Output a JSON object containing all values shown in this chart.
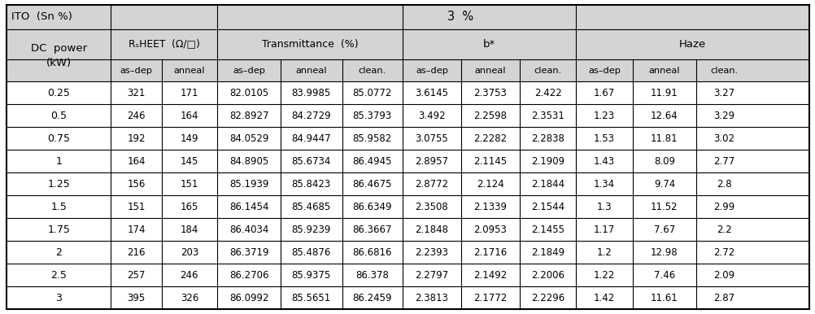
{
  "rows": [
    [
      "0.25",
      "321",
      "171",
      "82.0105",
      "83.9985",
      "85.0772",
      "3.6145",
      "2.3753",
      "2.422",
      "1.67",
      "11.91",
      "3.27"
    ],
    [
      "0.5",
      "246",
      "164",
      "82.8927",
      "84.2729",
      "85.3793",
      "3.492",
      "2.2598",
      "2.3531",
      "1.23",
      "12.64",
      "3.29"
    ],
    [
      "0.75",
      "192",
      "149",
      "84.0529",
      "84.9447",
      "85.9582",
      "3.0755",
      "2.2282",
      "2.2838",
      "1.53",
      "11.81",
      "3.02"
    ],
    [
      "1",
      "164",
      "145",
      "84.8905",
      "85.6734",
      "86.4945",
      "2.8957",
      "2.1145",
      "2.1909",
      "1.43",
      "8.09",
      "2.77"
    ],
    [
      "1.25",
      "156",
      "151",
      "85.1939",
      "85.8423",
      "86.4675",
      "2.8772",
      "2.124",
      "2.1844",
      "1.34",
      "9.74",
      "2.8"
    ],
    [
      "1.5",
      "151",
      "165",
      "86.1454",
      "85.4685",
      "86.6349",
      "2.3508",
      "2.1339",
      "2.1544",
      "1.3",
      "11.52",
      "2.99"
    ],
    [
      "1.75",
      "174",
      "184",
      "86.4034",
      "85.9239",
      "86.3667",
      "2.1848",
      "2.0953",
      "2.1455",
      "1.17",
      "7.67",
      "2.2"
    ],
    [
      "2",
      "216",
      "203",
      "86.3719",
      "85.4876",
      "86.6816",
      "2.2393",
      "2.1716",
      "2.1849",
      "1.2",
      "12.98",
      "2.72"
    ],
    [
      "2.5",
      "257",
      "246",
      "86.2706",
      "85.9375",
      "86.378",
      "2.2797",
      "2.1492",
      "2.2006",
      "1.22",
      "7.46",
      "2.09"
    ],
    [
      "3",
      "395",
      "326",
      "86.0992",
      "85.5651",
      "86.2459",
      "2.3813",
      "2.1772",
      "2.2296",
      "1.42",
      "11.61",
      "2.87"
    ]
  ],
  "bg_header": "#d4d4d4",
  "bg_white": "#ffffff",
  "lw_outer": 1.5,
  "lw_inner": 0.8,
  "font_size_data": 8.5,
  "font_size_header": 9.0
}
